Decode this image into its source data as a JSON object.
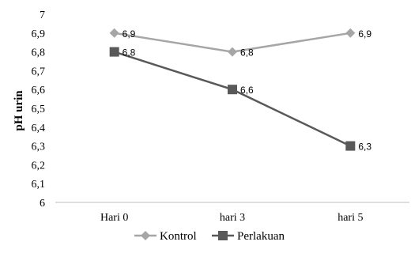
{
  "chart_data": {
    "type": "line",
    "categories": [
      "Hari 0",
      "hari 3",
      "hari 5"
    ],
    "ylabel": "pH urin",
    "ylim": [
      6,
      7
    ],
    "yticks": [
      "6",
      "6,1",
      "6,2",
      "6,3",
      "6,4",
      "6,5",
      "6,6",
      "6,7",
      "6,8",
      "6,9",
      "7"
    ],
    "grid": false,
    "legend_position": "bottom",
    "series": [
      {
        "name": "Kontrol",
        "values": [
          6.9,
          6.8,
          6.9
        ],
        "labels": [
          "6,9",
          "6,8",
          "6,9"
        ],
        "marker": "diamond",
        "color": "#a6a6a6"
      },
      {
        "name": "Perlakuan",
        "values": [
          6.8,
          6.6,
          6.3
        ],
        "labels": [
          "6,8",
          "6,6",
          "6,3"
        ],
        "marker": "square",
        "color": "#595959"
      }
    ]
  }
}
